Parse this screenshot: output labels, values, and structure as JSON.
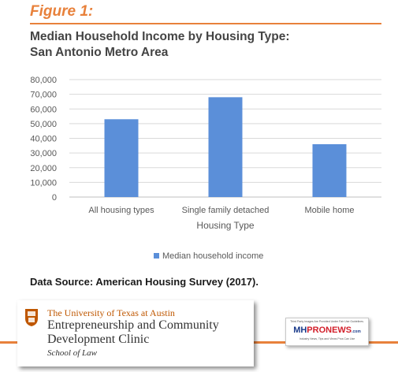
{
  "figure_label": "Figure 1:",
  "title_line1": "Median Household Income by Housing Type:",
  "title_line2": "San Antonio Metro Area",
  "chart_data": {
    "type": "bar",
    "title": "Median Household Income by Housing Type: San Antonio Metro Area",
    "categories": [
      "All housing types",
      "Single family detached",
      "Mobile home"
    ],
    "series": [
      {
        "name": "Median household income",
        "values": [
          53000,
          68000,
          36000
        ]
      }
    ],
    "xlabel": "Housing Type",
    "ylabel": "",
    "ylim": [
      0,
      80000
    ],
    "yticks": [
      "0",
      "10,000",
      "20,000",
      "30,000",
      "40,000",
      "50,000",
      "60,000",
      "70,000",
      "80,000"
    ],
    "grid": true,
    "legend_position": "bottom",
    "colors": {
      "bar": "#5b8fd9",
      "grid": "#d9d9d9",
      "axis": "#bfbfbf",
      "text": "#595959"
    }
  },
  "source_text": "Data Source: American Housing Survey (2017).",
  "logo_ut": {
    "line1": "The University of Texas at Austin",
    "line2": "Entrepreneurship and Community",
    "line3": "Development Clinic",
    "line4": "School of Law",
    "seal_icon": "ut-seal-icon"
  },
  "logo_mhpronews": {
    "top_text": "Third Party Images Are Provided Under Fair Use Guidelines.",
    "part_a": "MH",
    "part_b": "PRONEWS",
    "part_c": ".com",
    "tagline": "Industry News, Tips and Views Pros Can Use",
    "accent_colors": [
      "#1a3a8a",
      "#d21f2a"
    ]
  },
  "accent_color": "#e8813b"
}
